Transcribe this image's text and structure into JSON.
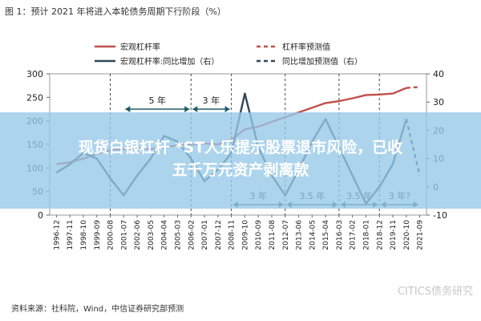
{
  "title": "图 1：预计 2021 年将进入本轮债务周期下行阶段（%）",
  "source": "资料来源：社科院，Wind，中信证券研究部预测",
  "watermark": "CITICS债务研究",
  "banner_text_lines": [
    "现货白银杠杆 *ST人乐提示股票退市风险，已收",
    "五千万元资产剥离款"
  ],
  "colors": {
    "left_series": "#c0504d",
    "right_series": "#2f4858",
    "annotation": "#1d5d6a",
    "grid": "#dddddd"
  },
  "chart_data": {
    "type": "line",
    "categories": [
      "1996-12",
      "1997-11",
      "1998-10",
      "1999-09",
      "2000-08",
      "2001-07",
      "2002-06",
      "2003-05",
      "2004-04",
      "2005-03",
      "2006-02",
      "2007-01",
      "2007-12",
      "2008-11",
      "2009-10",
      "2010-09",
      "2011-08",
      "2012-07",
      "2013-06",
      "2014-05",
      "2015-04",
      "2016-03",
      "2017-02",
      "2018-01",
      "2018-12",
      "2019-11",
      "2020-10",
      "2021-09"
    ],
    "y_left": {
      "min": 0,
      "max": 300,
      "ticks": [
        0,
        50,
        100,
        150,
        200,
        250,
        300
      ]
    },
    "y_right": {
      "min": -10,
      "max": 40,
      "ticks": [
        -10,
        0,
        10,
        20,
        30,
        40
      ]
    },
    "series": [
      {
        "name": "宏观杠杆率",
        "axis": "left",
        "style": "solid",
        "color": "#c0504d",
        "values": [
          108,
          112,
          120,
          130,
          138,
          140,
          142,
          140,
          144,
          148,
          150,
          152,
          150,
          160,
          182,
          188,
          198,
          208,
          218,
          228,
          238,
          242,
          248,
          255,
          256,
          258,
          270,
          null
        ]
      },
      {
        "name": "杠杆率预测值",
        "axis": "left",
        "style": "dashed",
        "color": "#c0504d",
        "values": [
          null,
          null,
          null,
          null,
          null,
          null,
          null,
          null,
          null,
          null,
          null,
          null,
          null,
          null,
          null,
          null,
          null,
          null,
          null,
          null,
          null,
          null,
          null,
          null,
          null,
          null,
          270,
          272
        ]
      },
      {
        "name": "宏观杠杆率:同比增加（右）",
        "axis": "right",
        "style": "solid",
        "color": "#2f4858",
        "values": [
          5,
          8,
          12,
          10,
          3,
          -3,
          4,
          10,
          18,
          16,
          10,
          2,
          6,
          12,
          33,
          14,
          4,
          -3,
          6,
          16,
          24,
          14,
          4,
          -6,
          0,
          8,
          24,
          null
        ]
      },
      {
        "name": "同比增加预测值（右）",
        "axis": "right",
        "style": "dashed",
        "color": "#2f4858",
        "values": [
          null,
          null,
          null,
          null,
          null,
          null,
          null,
          null,
          null,
          null,
          null,
          null,
          null,
          null,
          null,
          null,
          null,
          null,
          null,
          null,
          null,
          null,
          null,
          null,
          null,
          null,
          24,
          4
        ]
      }
    ],
    "annotations": [
      {
        "text": "5 年",
        "level": "top",
        "from": "2001-07",
        "to": "2006-02"
      },
      {
        "text": "3 年",
        "level": "top",
        "from": "2006-02",
        "to": "2008-11"
      },
      {
        "text": "3 年",
        "level": "bottom",
        "from": "2008-11",
        "to": "2012-07"
      },
      {
        "text": "3.5 年",
        "level": "bottom",
        "from": "2012-07",
        "to": "2016-03"
      },
      {
        "text": "3.5 年",
        "level": "bottom",
        "from": "2016-03",
        "to": "2018-12"
      },
      {
        "text": "3 年?",
        "level": "bottom",
        "from": "2018-12",
        "to": "2021-09"
      }
    ],
    "vlines": [
      "2000-08",
      "2006-02",
      "2008-11",
      "2012-07",
      "2016-03",
      "2018-12"
    ],
    "legend": [
      {
        "label": "宏观杠杆率",
        "style": "solid",
        "color": "#c0504d"
      },
      {
        "label": "杠杆率预测值",
        "style": "dashed",
        "color": "#c0504d"
      },
      {
        "label": "宏观杠杆率:同比增加（右）",
        "style": "solid",
        "color": "#2f4858"
      },
      {
        "label": "同比增加预测值（右）",
        "style": "dashed",
        "color": "#2f4858"
      }
    ]
  }
}
